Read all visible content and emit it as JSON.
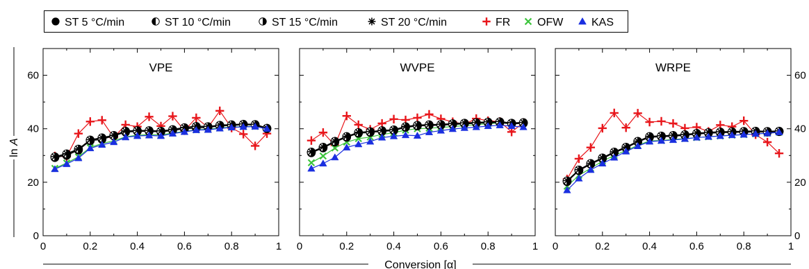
{
  "legend": {
    "items": [
      {
        "label": "ST 5 °C/min",
        "marker": "filled-circle",
        "color": "#000000"
      },
      {
        "label": "ST 10 °C/min",
        "marker": "half-left-circle",
        "color": "#000000"
      },
      {
        "label": "ST 15 °C/min",
        "marker": "half-right-circle",
        "color": "#000000"
      },
      {
        "label": "ST 20 °C/min",
        "marker": "asterisk",
        "color": "#000000"
      },
      {
        "label": "FR",
        "marker": "plus",
        "color": "#e8161b"
      },
      {
        "label": "OFW",
        "marker": "x-cross",
        "color": "#3cc43c"
      },
      {
        "label": "KAS",
        "marker": "triangle",
        "color": "#1a2fe0"
      }
    ]
  },
  "shared": {
    "xlabel": "Conversion [α]",
    "ylabel_prefix": "ln ",
    "ylabel_var": "A"
  },
  "chart_data": [
    {
      "type": "line",
      "title": "VPE",
      "xlim": [
        0,
        1
      ],
      "ylim": [
        0,
        70
      ],
      "xticks": [
        0,
        0.2,
        0.4,
        0.6,
        0.8,
        1
      ],
      "xtick_labels": [
        "0",
        "0.2",
        "0.4",
        "0.6",
        "0.8",
        "1"
      ],
      "yticks": [
        0,
        20,
        40,
        60
      ],
      "ytick_labels": [
        "0",
        "20",
        "40",
        "60"
      ],
      "ytick_side": "left",
      "x": [
        0.05,
        0.1,
        0.15,
        0.2,
        0.25,
        0.3,
        0.35,
        0.4,
        0.45,
        0.5,
        0.55,
        0.6,
        0.65,
        0.7,
        0.75,
        0.8,
        0.85,
        0.9,
        0.95
      ],
      "series": [
        {
          "name": "ST 5 °C/min",
          "values": [
            29.2,
            30.0,
            32.0,
            35.5,
            36.0,
            37.3,
            38.7,
            39.0,
            39.0,
            38.8,
            39.3,
            40.0,
            40.2,
            40.5,
            41.0,
            41.2,
            41.5,
            41.4,
            40.0
          ]
        },
        {
          "name": "ST 10 °C/min",
          "values": [
            29.4,
            30.4,
            32.2,
            35.7,
            36.4,
            37.4,
            39.0,
            39.2,
            39.2,
            39.0,
            39.6,
            40.2,
            40.7,
            40.7,
            41.2,
            41.4,
            41.6,
            41.5,
            40.1
          ]
        },
        {
          "name": "ST 15 °C/min",
          "values": [
            29.5,
            30.6,
            32.4,
            35.8,
            36.6,
            37.5,
            39.1,
            39.3,
            39.3,
            39.1,
            39.7,
            40.4,
            40.9,
            40.8,
            41.3,
            41.5,
            41.7,
            41.6,
            40.2
          ]
        },
        {
          "name": "ST 20 °C/min",
          "values": [
            29.6,
            30.7,
            32.5,
            35.9,
            36.7,
            37.6,
            39.2,
            39.4,
            39.4,
            39.2,
            39.8,
            40.5,
            41.0,
            40.9,
            41.4,
            41.6,
            41.8,
            41.7,
            40.3
          ]
        },
        {
          "name": "FR",
          "values": [
            29.8,
            29.6,
            38.2,
            42.7,
            43.2,
            36.7,
            41.5,
            40.8,
            44.5,
            41.0,
            44.7,
            39.3,
            44.1,
            40.5,
            46.7,
            40.3,
            38.0,
            33.6,
            38.2
          ]
        },
        {
          "name": "OFW",
          "values": [
            25.2,
            27.2,
            29.5,
            33.0,
            34.5,
            35.5,
            37.0,
            37.6,
            37.8,
            37.7,
            38.4,
            39.0,
            39.6,
            39.8,
            40.3,
            40.6,
            40.8,
            40.9,
            40.0
          ]
        },
        {
          "name": "KAS",
          "values": [
            24.9,
            26.8,
            29.0,
            32.7,
            34.0,
            35.0,
            36.8,
            37.3,
            37.5,
            37.3,
            38.2,
            38.8,
            39.5,
            39.6,
            40.1,
            40.5,
            40.7,
            40.8,
            40.0
          ]
        }
      ]
    },
    {
      "type": "line",
      "title": "WVPE",
      "xlim": [
        0,
        1
      ],
      "ylim": [
        0,
        70
      ],
      "xticks": [
        0,
        0.2,
        0.4,
        0.6,
        0.8,
        1
      ],
      "xtick_labels": [
        "0",
        "0.2",
        "0.4",
        "0.6",
        "0.8",
        "1"
      ],
      "yticks": [
        0,
        20,
        40,
        60
      ],
      "ytick_labels": [],
      "ytick_side": "none",
      "x": [
        0.05,
        0.1,
        0.15,
        0.2,
        0.25,
        0.3,
        0.35,
        0.4,
        0.45,
        0.5,
        0.55,
        0.6,
        0.65,
        0.7,
        0.75,
        0.8,
        0.85,
        0.9,
        0.95
      ],
      "series": [
        {
          "name": "ST 5 °C/min",
          "values": [
            31.0,
            32.8,
            35.0,
            36.8,
            38.3,
            38.6,
            39.0,
            39.3,
            40.5,
            41.0,
            41.2,
            41.3,
            41.6,
            41.8,
            42.0,
            42.2,
            42.3,
            41.8,
            42.0
          ]
        },
        {
          "name": "ST 10 °C/min",
          "values": [
            31.2,
            33.0,
            35.2,
            37.0,
            38.5,
            38.8,
            39.2,
            39.5,
            40.7,
            41.2,
            41.4,
            41.5,
            41.8,
            42.0,
            42.2,
            42.4,
            42.5,
            42.0,
            42.2
          ]
        },
        {
          "name": "ST 15 °C/min",
          "values": [
            31.3,
            33.1,
            35.3,
            37.1,
            38.6,
            38.9,
            39.3,
            39.6,
            40.8,
            41.3,
            41.5,
            41.6,
            41.9,
            42.1,
            42.3,
            42.5,
            42.6,
            42.1,
            42.3
          ]
        },
        {
          "name": "ST 20 °C/min",
          "values": [
            31.4,
            33.2,
            35.4,
            37.2,
            38.7,
            39.0,
            39.4,
            39.7,
            40.9,
            41.4,
            41.6,
            41.7,
            42.0,
            42.2,
            42.4,
            42.6,
            42.7,
            42.2,
            42.4
          ]
        },
        {
          "name": "FR",
          "values": [
            35.6,
            38.6,
            33.8,
            44.8,
            41.5,
            39.8,
            42.0,
            43.6,
            43.3,
            44.1,
            45.4,
            43.7,
            42.6,
            41.7,
            43.8,
            43.0,
            42.7,
            38.8,
            42.3
          ]
        },
        {
          "name": "OFW",
          "values": [
            27.3,
            29.8,
            32.8,
            35.0,
            36.3,
            36.9,
            37.9,
            38.5,
            39.5,
            40.0,
            40.2,
            40.5,
            40.8,
            41.2,
            41.5,
            41.9,
            42.2,
            41.9,
            42.2
          ]
        },
        {
          "name": "KAS",
          "values": [
            25.1,
            27.0,
            29.3,
            33.0,
            34.2,
            35.2,
            36.7,
            37.2,
            37.6,
            37.4,
            38.7,
            39.3,
            39.9,
            40.3,
            40.6,
            41.0,
            41.3,
            41.0,
            40.6
          ]
        }
      ]
    },
    {
      "type": "line",
      "title": "WRPE",
      "xlim": [
        0,
        1
      ],
      "ylim": [
        0,
        70
      ],
      "xticks": [
        0,
        0.2,
        0.4,
        0.6,
        0.8,
        1
      ],
      "xtick_labels": [
        "0",
        "0.2",
        "0.4",
        "0.6",
        "0.8",
        "1"
      ],
      "yticks": [
        0,
        20,
        40,
        60
      ],
      "ytick_labels": [
        "0",
        "20",
        "40",
        "60"
      ],
      "ytick_side": "right",
      "x": [
        0.05,
        0.1,
        0.15,
        0.2,
        0.25,
        0.3,
        0.35,
        0.4,
        0.45,
        0.5,
        0.55,
        0.6,
        0.65,
        0.7,
        0.75,
        0.8,
        0.85,
        0.9,
        0.95
      ],
      "series": [
        {
          "name": "ST 5 °C/min",
          "values": [
            20.2,
            24.3,
            26.7,
            28.8,
            31.0,
            32.8,
            35.0,
            36.8,
            37.0,
            37.2,
            37.5,
            38.0,
            38.3,
            38.5,
            38.6,
            38.7,
            38.8,
            38.7,
            38.9
          ]
        },
        {
          "name": "ST 10 °C/min",
          "values": [
            20.4,
            24.5,
            26.9,
            29.0,
            31.2,
            33.0,
            35.2,
            37.0,
            37.2,
            37.4,
            37.7,
            38.2,
            38.5,
            38.7,
            38.8,
            38.9,
            39.0,
            38.9,
            39.0
          ]
        },
        {
          "name": "ST 15 °C/min",
          "values": [
            20.5,
            24.6,
            27.0,
            29.1,
            31.3,
            33.1,
            35.3,
            37.1,
            37.3,
            37.5,
            37.8,
            38.3,
            38.6,
            38.8,
            38.9,
            39.0,
            39.1,
            39.0,
            39.1
          ]
        },
        {
          "name": "ST 20 °C/min",
          "values": [
            20.6,
            24.7,
            27.1,
            29.2,
            31.4,
            33.2,
            35.4,
            37.2,
            37.4,
            37.6,
            37.9,
            38.4,
            38.7,
            38.9,
            39.0,
            39.1,
            39.2,
            39.1,
            39.2
          ]
        },
        {
          "name": "FR",
          "values": [
            21.2,
            28.8,
            33.0,
            40.2,
            45.9,
            40.4,
            45.8,
            42.5,
            42.8,
            42.0,
            40.2,
            40.6,
            39.0,
            41.4,
            40.8,
            43.0,
            37.8,
            35.0,
            30.8
          ]
        },
        {
          "name": "OFW",
          "values": [
            18.5,
            22.6,
            25.2,
            27.9,
            30.0,
            31.9,
            33.8,
            35.5,
            35.6,
            36.0,
            36.3,
            36.7,
            37.0,
            37.3,
            37.6,
            37.8,
            38.1,
            38.3,
            38.7
          ]
        },
        {
          "name": "KAS",
          "values": [
            17.0,
            21.4,
            24.6,
            27.0,
            29.2,
            31.5,
            33.5,
            35.2,
            35.5,
            35.8,
            36.2,
            36.7,
            37.0,
            37.3,
            37.6,
            37.8,
            38.1,
            38.3,
            38.7
          ]
        }
      ]
    }
  ]
}
